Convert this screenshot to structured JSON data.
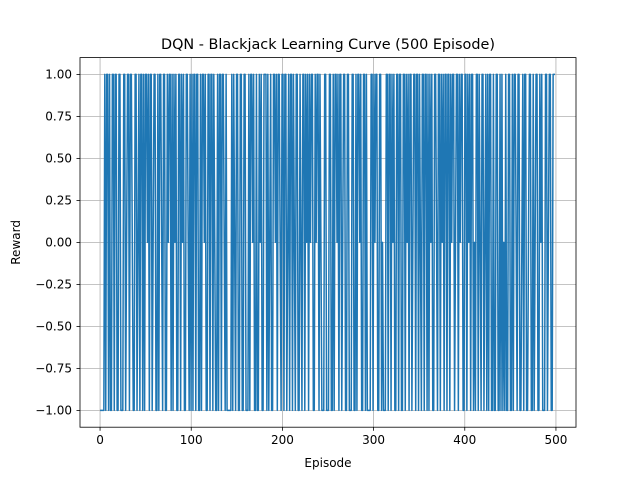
{
  "chart_data": {
    "type": "line",
    "title": "DQN - Blackjack Learning Curve (500 Episode)",
    "xlabel": "Episode",
    "ylabel": "Reward",
    "xlim": [
      -22,
      522
    ],
    "ylim": [
      -1.1,
      1.1
    ],
    "xticks": [
      0,
      100,
      200,
      300,
      400,
      500
    ],
    "yticks": [
      -1.0,
      -0.75,
      -0.5,
      -0.25,
      0.0,
      0.25,
      0.5,
      0.75,
      1.0
    ],
    "ytick_labels": [
      "−1.00",
      "−0.75",
      "−0.50",
      "−0.25",
      "0.00",
      "0.25",
      "0.50",
      "0.75",
      "1.00"
    ],
    "xtick_labels": [
      "0",
      "100",
      "200",
      "300",
      "400",
      "500"
    ],
    "grid": true,
    "series": [
      {
        "color": "#1f77b4",
        "x_start": 0,
        "x_end": 499,
        "values": [
          -1,
          -1,
          -1,
          -1,
          -1,
          1,
          -1,
          1,
          1,
          -1,
          1,
          -1,
          -1,
          1,
          1,
          -1,
          1,
          1,
          -1,
          -1,
          1,
          1,
          -1,
          -1,
          -1,
          1,
          1,
          -1,
          0,
          1,
          1,
          -1,
          1,
          1,
          0,
          -1,
          -1,
          1,
          1,
          -1,
          0,
          1,
          -1,
          1,
          1,
          -1,
          1,
          -1,
          1,
          1,
          0,
          1,
          -1,
          1,
          1,
          -1,
          0,
          1,
          1,
          -1,
          -1,
          1,
          -1,
          1,
          1,
          0,
          -1,
          1,
          1,
          -1,
          -1,
          1,
          0,
          1,
          1,
          -1,
          1,
          -1,
          1,
          0,
          1,
          -1,
          -1,
          1,
          1,
          -1,
          1,
          0,
          1,
          -1,
          -1,
          1,
          1,
          0,
          -1,
          1,
          -1,
          1,
          -1,
          1,
          1,
          -1,
          1,
          1,
          -1,
          -1,
          1,
          -1,
          1,
          1,
          0,
          1,
          -1,
          -1,
          1,
          1,
          -1,
          1,
          1,
          -1,
          1,
          0,
          -1,
          -1,
          1,
          -1,
          1,
          1,
          -1,
          1,
          1,
          0,
          -1,
          1,
          -1,
          -1,
          -1,
          -1,
          -1,
          1,
          -1,
          1,
          0,
          -1,
          1,
          1,
          -1,
          -1,
          1,
          1,
          -1,
          -1,
          1,
          1,
          -1,
          -1,
          -1,
          1,
          -1,
          1,
          1,
          0,
          1,
          -1,
          -1,
          1,
          -1,
          -1,
          1,
          0,
          1,
          -1,
          -1,
          1,
          1,
          1,
          -1,
          1,
          -1,
          0,
          1,
          -1,
          -1,
          1,
          1,
          0,
          1,
          -1,
          1,
          1,
          0,
          -1,
          1,
          1,
          -1,
          1,
          1,
          -1,
          0,
          1,
          -1,
          1,
          1,
          -1,
          1,
          0,
          -1,
          1,
          1,
          -1,
          -1,
          1,
          0,
          -1,
          1,
          1,
          -1,
          1,
          0,
          1,
          -1,
          1,
          0,
          1,
          1,
          -1,
          -1,
          1,
          0,
          1,
          1,
          -1,
          1,
          0,
          -1,
          -1,
          -1,
          1,
          1,
          -1,
          -1,
          -1,
          1,
          1,
          -1,
          -1,
          1,
          -1,
          1,
          1,
          0,
          1,
          -1,
          1,
          1,
          -1,
          0,
          1,
          1,
          -1,
          -1,
          1,
          1,
          -1,
          -1,
          -1,
          1,
          1,
          -1,
          -1,
          1,
          -1,
          1,
          1,
          0,
          1,
          -1,
          -1,
          1,
          1,
          -1,
          1,
          -1,
          -1,
          -1,
          -1,
          1,
          1,
          -1,
          1,
          0,
          1,
          1,
          -1,
          -1,
          1,
          1,
          -1,
          0,
          -1,
          -1,
          -1,
          1,
          1,
          -1,
          1,
          1,
          -1,
          1,
          0,
          1,
          -1,
          -1,
          1,
          1,
          -1,
          1,
          1,
          -1,
          -1,
          1,
          1,
          -1,
          1,
          0,
          1,
          -1,
          1,
          1,
          -1,
          0,
          1,
          1,
          -1,
          1,
          1,
          -1,
          1,
          0,
          -1,
          1,
          1,
          -1,
          1,
          1,
          -1,
          1,
          -1,
          1,
          0,
          1,
          -1,
          -1,
          1,
          1,
          0,
          -1,
          1,
          1,
          -1,
          1,
          0,
          1,
          -1,
          1,
          1,
          -1,
          1,
          1,
          -1,
          1,
          0,
          1,
          1,
          -1,
          0,
          1,
          1,
          -1,
          1,
          0,
          1,
          1,
          -1,
          -1,
          1,
          1,
          -1,
          1,
          0,
          1,
          -1,
          1,
          1,
          -1,
          0,
          -1,
          1,
          1,
          -1,
          1,
          0,
          -1,
          1,
          1,
          -1,
          0,
          1,
          -1,
          1,
          -1,
          1,
          1,
          -1,
          -1,
          1,
          -1,
          -1,
          1,
          1,
          -1,
          -1,
          1,
          -1,
          1,
          -1,
          0,
          -1,
          1,
          -1,
          -1,
          1,
          1,
          -1,
          -1,
          1,
          -1,
          1,
          1,
          0,
          -1,
          1,
          1,
          -1,
          -1,
          0,
          1,
          -1,
          1,
          1,
          -1,
          -1,
          0,
          1,
          1,
          -1,
          -1,
          1,
          -1,
          0,
          1,
          1,
          -1,
          -1,
          1,
          0,
          1,
          -1,
          -1,
          -1,
          1,
          1,
          -1,
          0,
          1,
          1,
          -1,
          -1,
          1,
          1,
          1
        ]
      }
    ]
  }
}
